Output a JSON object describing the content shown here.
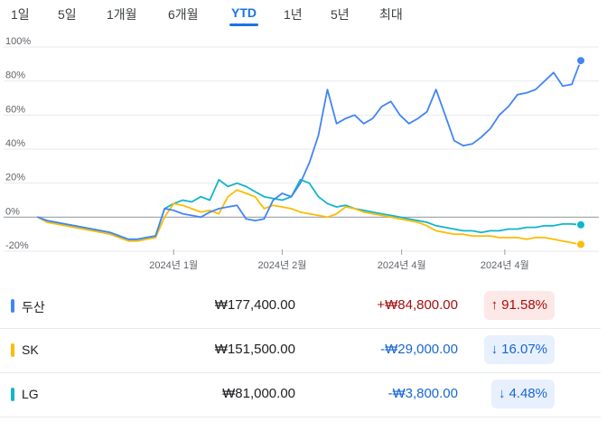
{
  "tabs": [
    {
      "label": "1일",
      "active": false
    },
    {
      "label": "5일",
      "active": false
    },
    {
      "label": "1개월",
      "active": false
    },
    {
      "label": "6개월",
      "active": false
    },
    {
      "label": "YTD",
      "active": true
    },
    {
      "label": "1년",
      "active": false
    },
    {
      "label": "5년",
      "active": false
    },
    {
      "label": "최대",
      "active": false
    }
  ],
  "chart_data": {
    "type": "line",
    "ylim": [
      -20,
      100
    ],
    "y_ticks": [
      -20,
      0,
      20,
      40,
      60,
      80,
      100
    ],
    "y_tick_labels": [
      "-20%",
      "0%",
      "20%",
      "40%",
      "60%",
      "80%",
      "100%"
    ],
    "x_tick_labels": [
      "2024년 1월",
      "2024년 2월",
      "2024년 4월",
      "2024년 4월"
    ],
    "x_tick_positions": [
      0.25,
      0.45,
      0.67,
      0.86
    ],
    "grid": true,
    "series": [
      {
        "name": "두산",
        "color": "#4285f4",
        "values": [
          0,
          -2,
          -3,
          -4,
          -5,
          -6,
          -7,
          -8,
          -9,
          -11,
          -13,
          -13,
          -12,
          -11,
          5,
          4,
          2,
          1,
          0,
          3,
          5,
          6,
          7,
          -1,
          -2,
          -1,
          10,
          14,
          12,
          20,
          32,
          48,
          75,
          55,
          58,
          60,
          55,
          58,
          65,
          68,
          60,
          55,
          58,
          62,
          75,
          60,
          45,
          42,
          43,
          47,
          52,
          60,
          65,
          72,
          73,
          75,
          80,
          85,
          77,
          78,
          92
        ]
      },
      {
        "name": "SK",
        "color": "#fbbc04",
        "values": [
          0,
          -3,
          -4,
          -5,
          -6,
          -7,
          -8,
          -9,
          -10,
          -12,
          -14,
          -14,
          -13,
          -12,
          0,
          8,
          7,
          5,
          3,
          4,
          2,
          12,
          16,
          14,
          12,
          5,
          7,
          6,
          5,
          3,
          2,
          1,
          0,
          2,
          6,
          5,
          3,
          2,
          1,
          0,
          -1,
          -2,
          -3,
          -5,
          -8,
          -9,
          -10,
          -10,
          -11,
          -11,
          -11,
          -12,
          -12,
          -12,
          -13,
          -12,
          -12,
          -13,
          -14,
          -15,
          -16
        ]
      },
      {
        "name": "LG",
        "color": "#12b5cb",
        "values": [
          0,
          -2,
          -3,
          -4,
          -5,
          -6,
          -7,
          -8,
          -9,
          -11,
          -13,
          -13,
          -12,
          -11,
          5,
          8,
          10,
          9,
          12,
          10,
          22,
          18,
          20,
          18,
          15,
          12,
          11,
          10,
          12,
          22,
          20,
          12,
          8,
          6,
          7,
          5,
          4,
          3,
          2,
          1,
          0,
          -1,
          -2,
          -3,
          -5,
          -6,
          -7,
          -8,
          -8,
          -9,
          -8,
          -8,
          -7,
          -7,
          -6,
          -6,
          -5,
          -5,
          -4,
          -4,
          -4.48
        ]
      }
    ]
  },
  "rows": [
    {
      "name": "두산",
      "color": "#4285f4",
      "price": "₩177,400.00",
      "change": "+₩84,800.00",
      "percent": "91.58%",
      "direction": "up",
      "arrow": "↑"
    },
    {
      "name": "SK",
      "color": "#fbbc04",
      "price": "₩151,500.00",
      "change": "-₩29,000.00",
      "percent": "16.07%",
      "direction": "down",
      "arrow": "↓"
    },
    {
      "name": "LG",
      "color": "#12b5cb",
      "price": "₩81,000.00",
      "change": "-₩3,800.00",
      "percent": "4.48%",
      "direction": "down",
      "arrow": "↓"
    }
  ]
}
